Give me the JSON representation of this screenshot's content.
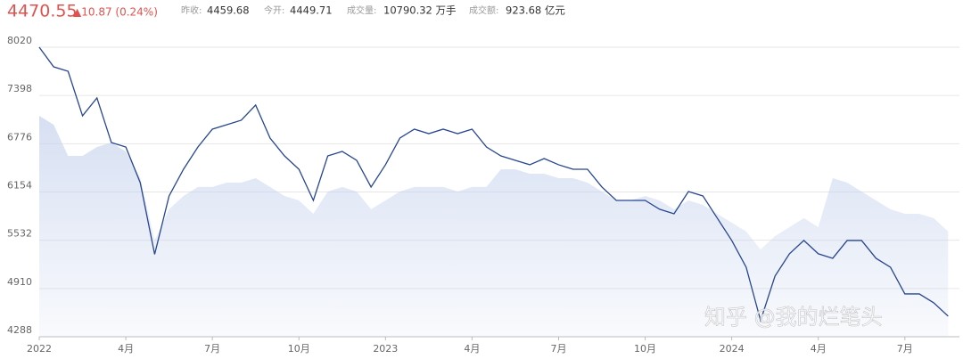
{
  "header": {
    "price": "4470.55",
    "change": "▲10.87 (0.24%)",
    "stats": [
      {
        "label": "昨收:",
        "value": "4459.68"
      },
      {
        "label": "今开:",
        "value": "4449.71"
      },
      {
        "label": "成交量:",
        "value": "10790.32 万手"
      },
      {
        "label": "成交额:",
        "value": "923.68 亿元"
      }
    ],
    "watermark": "知乎 @我的烂笔头"
  },
  "chart_data": {
    "type": "line",
    "categories": [
      "2022",
      null,
      null,
      null,
      null,
      null,
      "4月",
      null,
      null,
      null,
      null,
      null,
      "7月",
      null,
      null,
      null,
      null,
      null,
      "10月",
      null,
      null,
      null,
      null,
      null,
      "2023",
      null,
      null,
      null,
      null,
      null,
      "4月",
      null,
      null,
      null,
      null,
      null,
      "7月",
      null,
      null,
      null,
      null,
      null,
      "10月",
      null,
      null,
      null,
      null,
      null,
      "2024",
      null,
      null,
      null,
      null,
      null,
      "4月",
      null,
      null,
      null,
      null,
      null,
      "7月",
      null,
      null,
      null
    ],
    "series": [
      {
        "type": "area",
        "color": "#c9d5ee",
        "values": [
          7136,
          7021,
          6619,
          6619,
          6734,
          6791,
          6677,
          6332,
          5529,
          5931,
          6103,
          6218,
          6218,
          6275,
          6275,
          6332,
          6218,
          6103,
          6045,
          5873,
          6160,
          6218,
          6160,
          5931,
          6045,
          6160,
          6218,
          6218,
          6218,
          6160,
          6218,
          6218,
          6447,
          6447,
          6390,
          6390,
          6332,
          6332,
          6275,
          6160,
          6045,
          6045,
          6103,
          6045,
          5931,
          6045,
          5988,
          5873,
          5758,
          5644,
          5414,
          5586,
          5701,
          5816,
          5701,
          6332,
          6275,
          6160,
          6045,
          5931,
          5873,
          5873,
          5816,
          5644
        ]
      },
      {
        "type": "line",
        "color": "#27468f",
        "values": [
          8020,
          7767,
          7710,
          7136,
          7366,
          6791,
          6734,
          6275,
          5350,
          6103,
          6447,
          6734,
          6964,
          7021,
          7079,
          7274,
          6849,
          6619,
          6447,
          6045,
          6619,
          6677,
          6562,
          6218,
          6505,
          6849,
          6964,
          6906,
          6964,
          6906,
          6964,
          6734,
          6619,
          6562,
          6505,
          6585,
          6505,
          6447,
          6447,
          6218,
          6045,
          6045,
          6045,
          5931,
          5873,
          6160,
          6103,
          5816,
          5529,
          5184,
          4496,
          5070,
          5357,
          5529,
          5357,
          5299,
          5529,
          5529,
          5299,
          5184,
          4840,
          4840,
          4725,
          4553
        ]
      }
    ],
    "ylim": [
      4288,
      8020
    ],
    "yticks": [
      4288,
      4910,
      5532,
      6154,
      6776,
      7398,
      8020
    ],
    "grid": true
  }
}
